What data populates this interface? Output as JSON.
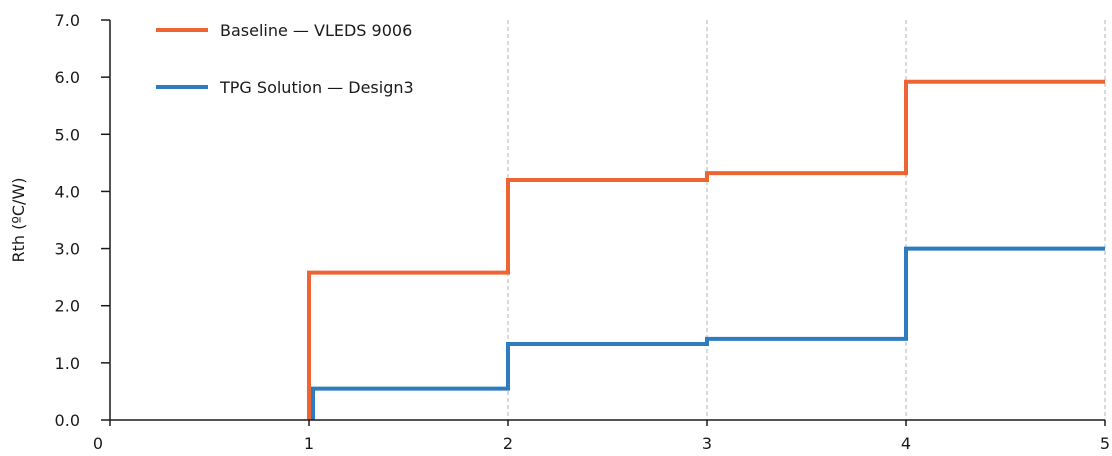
{
  "chart_data": {
    "type": "line",
    "step": true,
    "xlim": [
      0,
      5
    ],
    "ylim": [
      0,
      7
    ],
    "x_ticks": [
      0,
      1,
      2,
      3,
      4,
      5
    ],
    "x_tick_labels": [
      "0",
      "1",
      "2",
      "3",
      "4",
      "5"
    ],
    "y_ticks": [
      0,
      1,
      2,
      3,
      4,
      5,
      6,
      7
    ],
    "y_tick_labels": [
      "0.0",
      "1.0",
      "2.0",
      "3.0",
      "4.0",
      "5.0",
      "6.0",
      "7.0"
    ],
    "ylabel": "Rth (ºC/W)",
    "xlabel": "",
    "dashed_vertical_gridlines_at": [
      2,
      3,
      4,
      5
    ],
    "legend_position": "top-left",
    "series": [
      {
        "name": "Baseline — VLEDS 9006",
        "color": "#ef6433",
        "points": [
          [
            1,
            0
          ],
          [
            1,
            2.58
          ],
          [
            2,
            2.58
          ],
          [
            2,
            4.2
          ],
          [
            3,
            4.2
          ],
          [
            3,
            4.32
          ],
          [
            4,
            4.32
          ],
          [
            4,
            5.92
          ],
          [
            5,
            5.92
          ]
        ]
      },
      {
        "name": "TPG Solution — Design3",
        "color": "#2f7bbf",
        "points": [
          [
            1.02,
            0
          ],
          [
            1.02,
            0.55
          ],
          [
            2,
            0.55
          ],
          [
            2,
            1.33
          ],
          [
            3,
            1.33
          ],
          [
            3,
            1.42
          ],
          [
            4,
            1.42
          ],
          [
            4,
            3.0
          ],
          [
            5,
            3.0
          ]
        ]
      }
    ]
  }
}
